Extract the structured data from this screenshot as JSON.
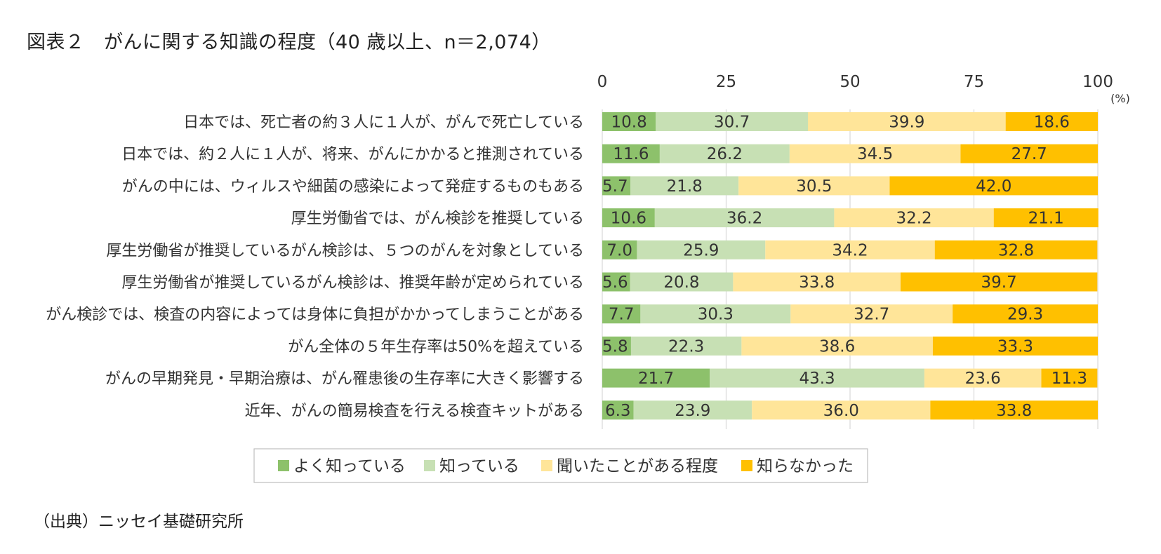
{
  "header": {
    "title": "図表２　がんに関する知識の程度（40 歳以上、n＝2,074）"
  },
  "footer": {
    "source": "（出典）ニッセイ基礎研究所"
  },
  "chart_data": {
    "type": "bar",
    "orientation": "horizontal",
    "stacked": true,
    "title": "図表２　がんに関する知識の程度（40 歳以上、n＝2,074）",
    "unit": "(%)",
    "xlim": [
      0,
      100
    ],
    "x_ticks": [
      "0",
      "25",
      "50",
      "75",
      "100"
    ],
    "grid": true,
    "legend_position": "bottom",
    "categories": [
      "日本では、死亡者の約３人に１人が、がんで死亡している",
      "日本では、約２人に１人が、将来、がんにかかると推測されている",
      "がんの中には、ウィルスや細菌の感染によって発症するものもある",
      "厚生労働省では、がん検診を推奨している",
      "厚生労働省が推奨しているがん検診は、５つのがんを対象としている",
      "厚生労働省が推奨しているがん検診は、推奨年齢が定められている",
      "がん検診では、検査の内容によっては身体に負担がかかってしまうことがある",
      "がん全体の５年生存率は50%を超えている",
      "がんの早期発見・早期治療は、がん罹患後の生存率に大きく影響する",
      "近年、がんの簡易検査を行える検査キットがある"
    ],
    "series": [
      {
        "name": "よく知っている",
        "color": "#8dc16b",
        "values": [
          10.8,
          11.6,
          5.7,
          10.6,
          7.0,
          5.6,
          7.7,
          5.8,
          21.7,
          6.3
        ],
        "labels": [
          "10.8",
          "11.6",
          "5.7",
          "10.6",
          "7.0",
          "5.6",
          "7.7",
          "5.8",
          "21.7",
          "6.3"
        ]
      },
      {
        "name": "知っている",
        "color": "#c7e0b4",
        "values": [
          30.7,
          26.2,
          21.8,
          36.2,
          25.9,
          20.8,
          30.3,
          22.3,
          43.3,
          23.9
        ],
        "labels": [
          "30.7",
          "26.2",
          "21.8",
          "36.2",
          "25.9",
          "20.8",
          "30.3",
          "22.3",
          "43.3",
          "23.9"
        ]
      },
      {
        "name": "聞いたことがある程度",
        "color": "#ffe599",
        "values": [
          39.9,
          34.5,
          30.5,
          32.2,
          34.2,
          33.8,
          32.7,
          38.6,
          23.6,
          36.0
        ],
        "labels": [
          "39.9",
          "34.5",
          "30.5",
          "32.2",
          "34.2",
          "33.8",
          "32.7",
          "38.6",
          "23.6",
          "36.0"
        ]
      },
      {
        "name": "知らなかった",
        "color": "#ffc000",
        "values": [
          18.6,
          27.7,
          42.0,
          21.1,
          32.8,
          39.7,
          29.3,
          33.3,
          11.3,
          33.8
        ],
        "labels": [
          "18.6",
          "27.7",
          "42.0",
          "21.1",
          "32.8",
          "39.7",
          "29.3",
          "33.3",
          "11.3",
          "33.8"
        ]
      }
    ]
  }
}
